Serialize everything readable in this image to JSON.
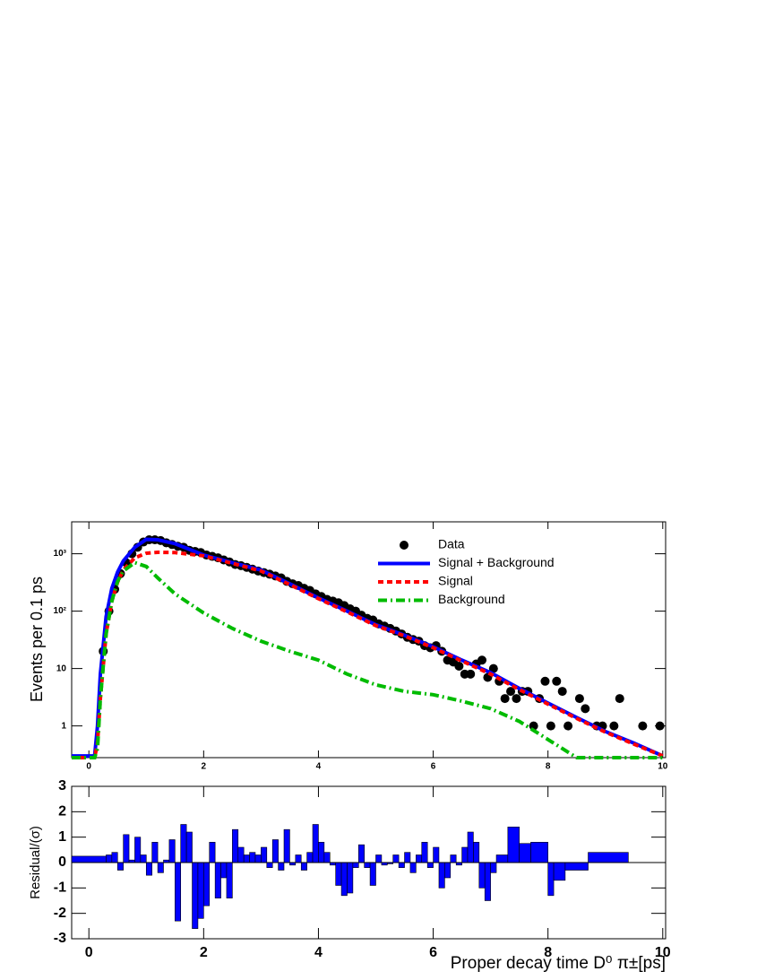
{
  "chart_data": [
    {
      "type": "line",
      "ylabel": "Events per 0.1 ps",
      "log_y": true,
      "legend": "upper right",
      "xlim": [
        -0.3,
        10.05
      ],
      "ylim": [
        0.28,
        3600
      ],
      "xticks": [
        0,
        2,
        4,
        6,
        8,
        10
      ],
      "yticks": [
        1,
        10,
        {
          "value": 100,
          "label": "10²"
        },
        {
          "value": 1000,
          "label": "10³"
        }
      ],
      "series": [
        {
          "name": "Data",
          "color": "#000000",
          "style": "markers",
          "x": [
            0.25,
            0.35,
            0.45,
            0.55,
            0.65,
            0.75,
            0.85,
            0.95,
            1.05,
            1.15,
            1.25,
            1.35,
            1.45,
            1.55,
            1.65,
            1.75,
            1.85,
            1.95,
            2.05,
            2.15,
            2.25,
            2.35,
            2.45,
            2.55,
            2.65,
            2.75,
            2.85,
            2.95,
            3.05,
            3.15,
            3.25,
            3.35,
            3.45,
            3.55,
            3.65,
            3.75,
            3.85,
            3.95,
            4.05,
            4.15,
            4.25,
            4.35,
            4.45,
            4.55,
            4.65,
            4.75,
            4.85,
            4.95,
            5.05,
            5.15,
            5.25,
            5.35,
            5.45,
            5.55,
            5.65,
            5.75,
            5.85,
            5.95,
            6.05,
            6.15,
            6.25,
            6.35,
            6.45,
            6.55,
            6.65,
            6.75,
            6.85,
            6.95,
            7.05,
            7.15,
            7.25,
            7.35,
            7.45,
            7.55,
            7.65,
            7.75,
            7.85,
            7.95,
            8.05,
            8.15,
            8.25,
            8.35,
            8.55,
            8.65,
            8.85,
            8.95,
            9.15,
            9.25,
            9.65,
            9.95
          ],
          "values": [
            20,
            100,
            240,
            450,
            700,
            1000,
            1300,
            1600,
            1750,
            1750,
            1700,
            1550,
            1450,
            1350,
            1300,
            1150,
            1100,
            1050,
            950,
            900,
            850,
            780,
            720,
            650,
            620,
            580,
            540,
            500,
            470,
            440,
            410,
            380,
            330,
            300,
            280,
            250,
            230,
            200,
            180,
            160,
            150,
            140,
            125,
            110,
            100,
            85,
            75,
            70,
            60,
            55,
            50,
            45,
            40,
            35,
            32,
            30,
            25,
            23,
            25,
            20,
            14,
            13,
            11,
            8,
            8,
            12,
            14,
            7,
            10,
            6,
            3,
            4,
            3,
            4,
            4,
            1,
            3,
            6,
            1,
            6,
            4,
            1,
            3,
            2,
            1,
            1,
            1,
            3,
            1,
            1
          ]
        },
        {
          "name": "Signal + Background",
          "color": "#0000ff",
          "style": "solid",
          "x": [
            -0.3,
            0,
            0.1,
            0.15,
            0.2,
            0.3,
            0.4,
            0.5,
            0.6,
            0.8,
            1,
            1.2,
            1.5,
            2,
            2.5,
            3,
            3.5,
            4,
            4.5,
            5,
            5.5,
            6,
            6.5,
            7,
            7.5,
            8,
            8.5,
            9,
            9.5,
            10
          ],
          "values": [
            0.3,
            0.3,
            0.3,
            1,
            8,
            80,
            250,
            480,
            750,
            1300,
            1780,
            1750,
            1500,
            950,
            700,
            520,
            300,
            170,
            100,
            58,
            38,
            24,
            14,
            8.5,
            4.5,
            2.5,
            1.4,
            0.8,
            0.5,
            0.3
          ]
        },
        {
          "name": "Signal",
          "color": "#ff0000",
          "style": "dashed",
          "x": [
            -0.3,
            0,
            0.1,
            0.15,
            0.2,
            0.3,
            0.4,
            0.5,
            0.6,
            0.8,
            1,
            1.2,
            1.5,
            2,
            2.5,
            3,
            3.5,
            4,
            4.5,
            5,
            5.5,
            6,
            6.5,
            7,
            7.5,
            8,
            8.5,
            9,
            9.5,
            10
          ],
          "values": [
            0.28,
            0.28,
            0.28,
            0.5,
            3,
            40,
            150,
            320,
            520,
            850,
            1020,
            1060,
            1050,
            920,
            680,
            500,
            290,
            165,
            97,
            56,
            37,
            23,
            13.5,
            8,
            4.3,
            2.4,
            1.35,
            0.78,
            0.48,
            0.3
          ]
        },
        {
          "name": "Background",
          "color": "#00bb00",
          "style": "dashdot",
          "x": [
            -0.3,
            0,
            0.1,
            0.15,
            0.2,
            0.3,
            0.4,
            0.5,
            0.6,
            0.8,
            1,
            1.2,
            1.5,
            2,
            2.5,
            3,
            3.5,
            4,
            4.5,
            5,
            5.5,
            6,
            6.5,
            7,
            7.5,
            8,
            8.5,
            9,
            9.5,
            10
          ],
          "values": [
            0.28,
            0.28,
            0.28,
            0.4,
            3,
            40,
            150,
            330,
            500,
            700,
            600,
            380,
            200,
            93,
            50,
            30,
            20,
            14,
            8,
            5.2,
            4,
            3.5,
            2.7,
            2,
            1.2,
            0.58,
            0.28,
            0.28,
            0.28,
            0.28
          ]
        }
      ]
    },
    {
      "type": "histogram",
      "xlabel": "Proper decay time D⁰ π±[ps]",
      "ylabel": "Residual/(σ)",
      "color": "#0000ff",
      "xlim": [
        -0.3,
        10.05
      ],
      "ylim": [
        -3,
        3
      ],
      "xticks": [
        0,
        2,
        4,
        6,
        8,
        10
      ],
      "yticks": [
        -3,
        -2,
        -1,
        0,
        1,
        2,
        3
      ],
      "bins": [
        -0.3,
        0.3,
        0.4,
        0.5,
        0.6,
        0.7,
        0.8,
        0.9,
        1.0,
        1.1,
        1.2,
        1.3,
        1.4,
        1.5,
        1.6,
        1.7,
        1.8,
        1.9,
        2.0,
        2.1,
        2.2,
        2.3,
        2.4,
        2.5,
        2.6,
        2.7,
        2.8,
        2.9,
        3.0,
        3.1,
        3.2,
        3.3,
        3.4,
        3.5,
        3.6,
        3.7,
        3.8,
        3.9,
        4.0,
        4.1,
        4.2,
        4.3,
        4.4,
        4.5,
        4.6,
        4.7,
        4.8,
        4.9,
        5.0,
        5.1,
        5.2,
        5.3,
        5.4,
        5.5,
        5.6,
        5.7,
        5.8,
        5.9,
        6.0,
        6.1,
        6.2,
        6.3,
        6.4,
        6.5,
        6.6,
        6.7,
        6.8,
        6.9,
        7.0,
        7.1,
        7.3,
        7.5,
        7.7,
        8.0,
        8.1,
        8.3,
        8.7,
        9.4,
        10.05
      ],
      "values": [
        0.25,
        0.3,
        0.4,
        -0.3,
        1.1,
        0.1,
        1.0,
        0.3,
        -0.5,
        0.8,
        -0.4,
        0.1,
        0.9,
        -2.3,
        1.5,
        1.2,
        -2.6,
        -2.2,
        -1.7,
        0.8,
        -1.4,
        -0.6,
        -1.4,
        1.3,
        0.6,
        0.3,
        0.4,
        0.3,
        0.6,
        -0.2,
        0.9,
        -0.3,
        1.3,
        -0.1,
        0.3,
        -0.3,
        0.4,
        1.5,
        0.8,
        0.4,
        -0.1,
        -0.9,
        -1.3,
        -1.2,
        -0.2,
        0.7,
        -0.2,
        -0.9,
        0.3,
        -0.1,
        -0.05,
        0.3,
        -0.2,
        0.4,
        -0.4,
        0.3,
        0.8,
        -0.2,
        0.6,
        -1.0,
        -0.6,
        0.3,
        -0.1,
        0.6,
        1.2,
        0.8,
        -1.0,
        -1.5,
        -0.4,
        0.3,
        1.4,
        0.75,
        0.8,
        -1.3,
        -0.7,
        -0.3,
        0.4,
        0
      ]
    }
  ]
}
